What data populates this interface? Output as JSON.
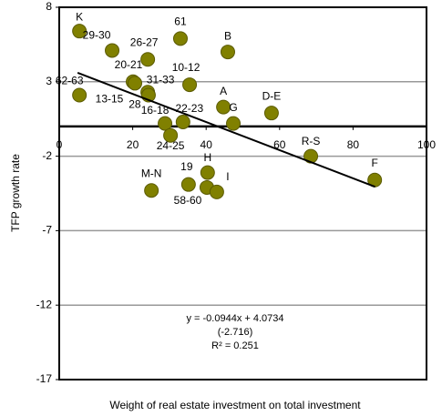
{
  "chart_data": {
    "type": "scatter",
    "x_label": "Weight of real estate investment on total investment",
    "y_label": "TFP growth rate",
    "point_labels": [
      "K",
      "29-30",
      "61",
      "B",
      "26-27",
      "20-21",
      "31-33",
      "10-12",
      "62-63",
      "13-15",
      "28",
      "A",
      "D-E",
      "G",
      "16-18",
      "22-23",
      "24-25",
      "R-S",
      "F",
      "H",
      "19",
      "58-60",
      "I",
      "M-N"
    ],
    "x": [
      5.5,
      14.4,
      33.0,
      45.9,
      24.1,
      20.1,
      24.1,
      35.5,
      5.5,
      20.6,
      24.3,
      44.7,
      57.8,
      47.4,
      28.8,
      33.7,
      30.3,
      68.5,
      85.9,
      40.4,
      35.2,
      40.2,
      42.9,
      25.1
    ],
    "values": [
      6.4,
      5.1,
      5.9,
      5.0,
      4.5,
      3.0,
      2.3,
      2.8,
      2.1,
      2.9,
      2.1,
      1.3,
      0.9,
      0.2,
      0.2,
      0.3,
      -0.6,
      -2.0,
      -3.6,
      -3.1,
      -3.9,
      -4.1,
      -4.4,
      -4.3
    ],
    "color": "#808000",
    "trendline": {
      "x": [
        5,
        86
      ],
      "values": [
        3.6,
        -4.05
      ]
    },
    "annotation": [
      "y = -0.0944x + 4.0734",
      "(-2.716)",
      "R² = 0.251"
    ],
    "xlim": [
      0,
      100
    ],
    "xticks": [
      0,
      20,
      40,
      60,
      80,
      100
    ],
    "ylim": [
      -17,
      8
    ],
    "yticks": [
      8,
      3,
      -2,
      -7,
      -12,
      -17
    ],
    "grid": true
  }
}
